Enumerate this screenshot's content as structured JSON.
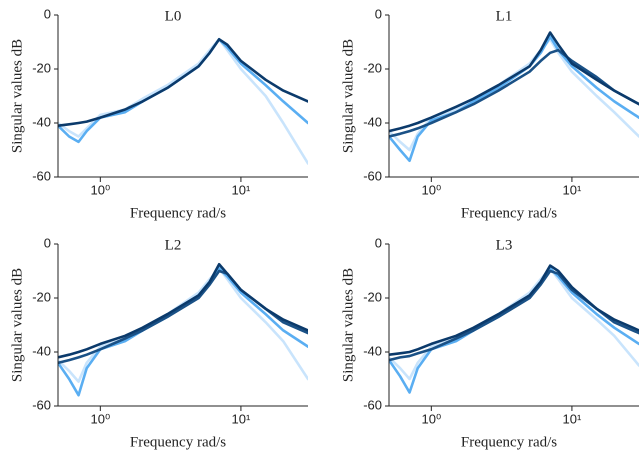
{
  "chart_data": [
    {
      "type": "line",
      "title": "L0",
      "xlabel": "Frequency  rad/s",
      "ylabel": "Singular values  dB",
      "xscale": "log",
      "xlim": [
        0.5,
        30
      ],
      "ylim": [
        -60,
        0
      ],
      "yticks": [
        0,
        -20,
        -40,
        -60
      ],
      "xticks": [
        {
          "value": 1,
          "label": "10⁰"
        },
        {
          "value": 10,
          "label": "10¹"
        }
      ],
      "x": [
        0.5,
        0.6,
        0.7,
        0.8,
        1,
        1.5,
        2,
        3,
        5,
        6,
        7,
        8,
        10,
        15,
        20,
        30
      ],
      "series": [
        {
          "color": "#c9e4fc",
          "values": [
            -40,
            -43,
            -45,
            -42,
            -37,
            -35,
            -31,
            -26,
            -18,
            -13,
            -9,
            -13,
            -20,
            -30,
            -40,
            -55
          ]
        },
        {
          "color": "#5aaef2",
          "values": [
            -41,
            -45,
            -47,
            -43,
            -38,
            -36,
            -32,
            -27,
            -19,
            -14,
            -9,
            -12,
            -18,
            -26,
            -32,
            -40
          ]
        },
        {
          "color": "#0b3a6b",
          "values": [
            -41,
            -40.5,
            -40,
            -39.5,
            -38,
            -35,
            -32,
            -27,
            -19,
            -14,
            -9,
            -11,
            -17,
            -24,
            -28,
            -32
          ]
        }
      ]
    },
    {
      "type": "line",
      "title": "L1",
      "xlabel": "Frequency  rad/s",
      "ylabel": "Singular values  dB",
      "xscale": "log",
      "xlim": [
        0.5,
        30
      ],
      "ylim": [
        -60,
        0
      ],
      "yticks": [
        0,
        -20,
        -40,
        -60
      ],
      "xticks": [
        {
          "value": 1,
          "label": "10⁰"
        },
        {
          "value": 10,
          "label": "10¹"
        }
      ],
      "x": [
        0.5,
        0.6,
        0.7,
        0.8,
        1,
        1.5,
        2,
        3,
        5,
        6,
        7,
        8,
        10,
        15,
        20,
        30
      ],
      "series": [
        {
          "color": "#c9e4fc",
          "values": [
            -43,
            -47,
            -50,
            -44,
            -38,
            -35,
            -31,
            -26,
            -18,
            -13,
            -9,
            -14,
            -21,
            -30,
            -36,
            -45
          ]
        },
        {
          "color": "#5aaef2",
          "values": [
            -45,
            -50,
            -54,
            -45,
            -39,
            -36,
            -32,
            -27,
            -19,
            -14,
            -8,
            -13,
            -19,
            -27,
            -32,
            -38
          ]
        },
        {
          "color": "#1a5186",
          "values": [
            -45,
            -44,
            -43,
            -42,
            -40,
            -36,
            -33,
            -28,
            -21,
            -17,
            -14,
            -13,
            -17,
            -23,
            -28,
            -33
          ]
        },
        {
          "color": "#0b3a6b",
          "values": [
            -43,
            -42,
            -41,
            -40,
            -38,
            -34,
            -31,
            -26,
            -19,
            -13,
            -6.5,
            -11,
            -18,
            -24,
            -28,
            -33
          ]
        }
      ]
    },
    {
      "type": "line",
      "title": "L2",
      "xlabel": "Frequency  rad/s",
      "ylabel": "Singular values  dB",
      "xscale": "log",
      "xlim": [
        0.5,
        30
      ],
      "ylim": [
        -60,
        0
      ],
      "yticks": [
        0,
        -20,
        -40,
        -60
      ],
      "xticks": [
        {
          "value": 1,
          "label": "10⁰"
        },
        {
          "value": 10,
          "label": "10¹"
        }
      ],
      "x": [
        0.5,
        0.6,
        0.7,
        0.8,
        1,
        1.5,
        2,
        3,
        5,
        6,
        7,
        8,
        10,
        15,
        20,
        30
      ],
      "series": [
        {
          "color": "#c9e4fc",
          "values": [
            -43,
            -47,
            -51,
            -44,
            -38,
            -35,
            -31,
            -26,
            -18,
            -13,
            -9,
            -13,
            -20,
            -29,
            -36,
            -50
          ]
        },
        {
          "color": "#5aaef2",
          "values": [
            -44,
            -50,
            -56,
            -46,
            -39,
            -36,
            -32,
            -27,
            -19,
            -14,
            -9,
            -12,
            -18,
            -26,
            -32,
            -38
          ]
        },
        {
          "color": "#1a5186",
          "values": [
            -44,
            -43,
            -42,
            -41,
            -39,
            -35,
            -32,
            -27,
            -20,
            -15,
            -10,
            -11,
            -17,
            -24,
            -29,
            -33
          ]
        },
        {
          "color": "#0b3a6b",
          "values": [
            -42,
            -41,
            -40,
            -39,
            -37,
            -34,
            -31,
            -26,
            -19,
            -14,
            -7.5,
            -11,
            -17,
            -24,
            -28,
            -32
          ]
        }
      ]
    },
    {
      "type": "line",
      "title": "L3",
      "xlabel": "Frequency  rad/s",
      "ylabel": "Singular values  dB",
      "xscale": "log",
      "xlim": [
        0.5,
        30
      ],
      "ylim": [
        -60,
        0
      ],
      "yticks": [
        0,
        -20,
        -40,
        -60
      ],
      "xticks": [
        {
          "value": 1,
          "label": "10⁰"
        },
        {
          "value": 10,
          "label": "10¹"
        }
      ],
      "x": [
        0.5,
        0.6,
        0.7,
        0.8,
        1,
        1.5,
        2,
        3,
        5,
        6,
        7,
        8,
        10,
        15,
        20,
        30
      ],
      "series": [
        {
          "color": "#c9e4fc",
          "values": [
            -42,
            -46,
            -50,
            -44,
            -38,
            -35,
            -31,
            -26,
            -18,
            -13,
            -9,
            -13,
            -20,
            -28,
            -34,
            -45
          ]
        },
        {
          "color": "#5aaef2",
          "values": [
            -43,
            -49,
            -55,
            -46,
            -39,
            -36,
            -32,
            -27,
            -19,
            -14,
            -9,
            -12,
            -18,
            -26,
            -31,
            -37
          ]
        },
        {
          "color": "#1a5186",
          "values": [
            -43,
            -42,
            -41.5,
            -40.5,
            -39,
            -35,
            -32,
            -27,
            -20,
            -15,
            -10,
            -11,
            -17,
            -24,
            -29,
            -33
          ]
        },
        {
          "color": "#0b3a6b",
          "values": [
            -41,
            -40.5,
            -40,
            -39,
            -37,
            -34,
            -31,
            -26,
            -19,
            -14,
            -8,
            -10,
            -16,
            -24,
            -28,
            -32
          ]
        }
      ]
    }
  ]
}
